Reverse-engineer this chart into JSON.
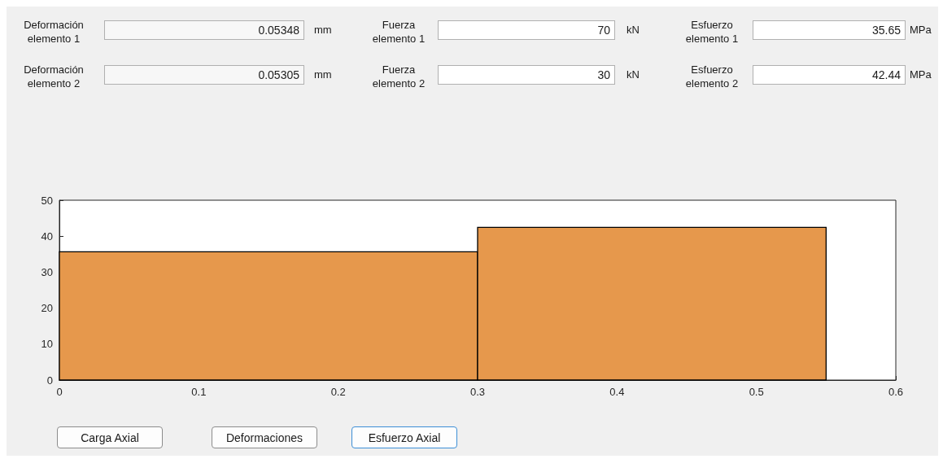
{
  "chart_data": [
    {
      "type": "other",
      "annotations": [
        "Deformación elemento 1",
        "0.05348",
        "mm",
        "Fuerza elemento 1",
        "70",
        "kN",
        "Esfuerzo elemento 1",
        "35.65",
        "MPa",
        "Deformación elemento 2",
        "0.05305",
        "mm",
        "Fuerza elemento 2",
        "30",
        "kN",
        "Esfuerzo elemento 2",
        "42.44",
        "MPa"
      ]
    },
    {
      "type": "histogram",
      "bins": [
        0,
        0.3,
        0.55
      ],
      "values": [
        35.65,
        42.44
      ],
      "color": "#e6984c",
      "xlim": [
        0,
        0.6
      ],
      "xticks": [
        0,
        0.1,
        0.2,
        0.3,
        0.4,
        0.5,
        0.6
      ],
      "ylim": [
        0,
        50
      ],
      "yticks": [
        0,
        10,
        20,
        30,
        40,
        50
      ],
      "grid": false
    },
    {
      "type": "other",
      "annotations": [
        "Carga Axial",
        "Deformaciones",
        "Esfuerzo Axial"
      ]
    }
  ]
}
